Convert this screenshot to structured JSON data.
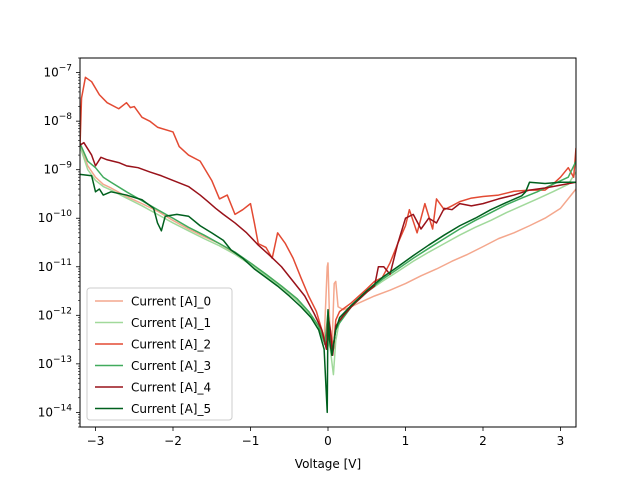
{
  "chart_data": {
    "type": "line",
    "title": "",
    "xlabel": "Voltage [V]",
    "ylabel": "",
    "xlim": [
      -3.2,
      3.2
    ],
    "ylim": [
      5e-15,
      2e-07
    ],
    "yscale": "log",
    "grid": false,
    "legend_position": "lower-left",
    "x_ticks": [
      -3,
      -2,
      -1,
      0,
      1,
      2,
      3
    ],
    "x_tick_labels": [
      "−3",
      "−2",
      "−1",
      "0",
      "1",
      "2",
      "3"
    ],
    "y_ticks": [
      1e-14,
      1e-13,
      1e-12,
      1e-11,
      1e-10,
      1e-09,
      1e-08,
      1e-07
    ],
    "y_tick_bases": [
      "10",
      "10",
      "10",
      "10",
      "10",
      "10",
      "10",
      "10"
    ],
    "y_tick_exponents": [
      "−14",
      "−13",
      "−12",
      "−11",
      "−10",
      "−9",
      "−8",
      "−7"
    ],
    "series": [
      {
        "name": "Current [A]_0",
        "color": "#f4a78d",
        "points": [
          [
            -3.2,
            3.5e-09
          ],
          [
            -3.1,
            1.2e-09
          ],
          [
            -3.0,
            7e-10
          ],
          [
            -2.9,
            5e-10
          ],
          [
            -2.8,
            4.2e-10
          ],
          [
            -2.6,
            2.8e-10
          ],
          [
            -2.4,
            2e-10
          ],
          [
            -2.2,
            1.4e-10
          ],
          [
            -2.0,
            9e-11
          ],
          [
            -1.8,
            6e-11
          ],
          [
            -1.6,
            4.2e-11
          ],
          [
            -1.4,
            3e-11
          ],
          [
            -1.2,
            1.9e-11
          ],
          [
            -1.0,
            1.2e-11
          ],
          [
            -0.8,
            7e-12
          ],
          [
            -0.6,
            4e-12
          ],
          [
            -0.4,
            2.2e-12
          ],
          [
            -0.25,
            1.2e-12
          ],
          [
            -0.12,
            6e-13
          ],
          [
            -0.05,
            3e-13
          ],
          [
            -0.01,
            1e-11
          ],
          [
            0.0,
            1.2e-11
          ],
          [
            0.02,
            8e-13
          ],
          [
            0.05,
            2e-13
          ],
          [
            0.08,
            4.5e-12
          ],
          [
            0.1,
            5e-12
          ],
          [
            0.13,
            1.5e-12
          ],
          [
            0.2,
            1.3e-12
          ],
          [
            0.3,
            1.5e-12
          ],
          [
            0.4,
            1.8e-12
          ],
          [
            0.6,
            2.5e-12
          ],
          [
            0.8,
            3.3e-12
          ],
          [
            1.0,
            4.5e-12
          ],
          [
            1.2,
            6.5e-12
          ],
          [
            1.4,
            9e-12
          ],
          [
            1.6,
            1.3e-11
          ],
          [
            1.8,
            1.8e-11
          ],
          [
            2.0,
            2.6e-11
          ],
          [
            2.2,
            3.8e-11
          ],
          [
            2.4,
            5e-11
          ],
          [
            2.6,
            7e-11
          ],
          [
            2.8,
            1e-10
          ],
          [
            3.0,
            1.6e-10
          ],
          [
            3.2,
            4e-10
          ]
        ]
      },
      {
        "name": "Current [A]_1",
        "color": "#a1d99b",
        "points": [
          [
            -3.2,
            3e-09
          ],
          [
            -3.1,
            1e-09
          ],
          [
            -3.0,
            6e-10
          ],
          [
            -2.9,
            4.5e-10
          ],
          [
            -2.8,
            3.8e-10
          ],
          [
            -2.6,
            2.6e-10
          ],
          [
            -2.4,
            1.8e-10
          ],
          [
            -2.2,
            1.2e-10
          ],
          [
            -2.0,
            8e-11
          ],
          [
            -1.8,
            5.5e-11
          ],
          [
            -1.6,
            3.8e-11
          ],
          [
            -1.4,
            2.7e-11
          ],
          [
            -1.2,
            1.8e-11
          ],
          [
            -1.0,
            1.1e-11
          ],
          [
            -0.8,
            6.5e-12
          ],
          [
            -0.6,
            3.8e-12
          ],
          [
            -0.4,
            2e-12
          ],
          [
            -0.25,
            1.1e-12
          ],
          [
            -0.1,
            5e-13
          ],
          [
            -0.03,
            2.5e-13
          ],
          [
            0.0,
            3e-13
          ],
          [
            0.03,
            2e-13
          ],
          [
            0.07,
            6e-14
          ],
          [
            0.1,
            3e-13
          ],
          [
            0.15,
            8e-13
          ],
          [
            0.3,
            1.6e-12
          ],
          [
            0.5,
            3e-12
          ],
          [
            0.7,
            5e-12
          ],
          [
            0.9,
            8e-12
          ],
          [
            1.1,
            1.3e-11
          ],
          [
            1.3,
            2e-11
          ],
          [
            1.5,
            3e-11
          ],
          [
            1.7,
            4.5e-11
          ],
          [
            1.9,
            6.5e-11
          ],
          [
            2.1,
            9e-11
          ],
          [
            2.3,
            1.3e-10
          ],
          [
            2.5,
            1.8e-10
          ],
          [
            2.7,
            2.5e-10
          ],
          [
            2.9,
            3.5e-10
          ],
          [
            3.1,
            5e-10
          ],
          [
            3.2,
            9e-10
          ]
        ]
      },
      {
        "name": "Current [A]_2",
        "color": "#e34a33",
        "points": [
          [
            -3.2,
            3e-09
          ],
          [
            -3.18,
            3e-08
          ],
          [
            -3.13,
            8e-08
          ],
          [
            -3.05,
            6.5e-08
          ],
          [
            -2.95,
            3.5e-08
          ],
          [
            -2.85,
            2.4e-08
          ],
          [
            -2.7,
            1.8e-08
          ],
          [
            -2.6,
            2.4e-08
          ],
          [
            -2.55,
            1.9e-08
          ],
          [
            -2.5,
            2e-08
          ],
          [
            -2.4,
            1.2e-08
          ],
          [
            -2.3,
            1e-08
          ],
          [
            -2.2,
            7.5e-09
          ],
          [
            -2.0,
            6e-09
          ],
          [
            -1.92,
            3e-09
          ],
          [
            -1.8,
            2e-09
          ],
          [
            -1.65,
            1.5e-09
          ],
          [
            -1.5,
            6e-10
          ],
          [
            -1.4,
            2.5e-10
          ],
          [
            -1.3,
            3e-10
          ],
          [
            -1.2,
            1.2e-10
          ],
          [
            -1.1,
            1.5e-10
          ],
          [
            -1.0,
            2e-10
          ],
          [
            -0.95,
            8e-11
          ],
          [
            -0.9,
            3e-11
          ],
          [
            -0.8,
            2.5e-11
          ],
          [
            -0.72,
            1.5e-11
          ],
          [
            -0.65,
            5e-11
          ],
          [
            -0.55,
            3e-11
          ],
          [
            -0.45,
            1.5e-11
          ],
          [
            -0.35,
            6e-12
          ],
          [
            -0.25,
            2.5e-12
          ],
          [
            -0.15,
            1.2e-12
          ],
          [
            -0.08,
            5e-13
          ],
          [
            -0.02,
            2.5e-13
          ],
          [
            0.0,
            3e-13
          ],
          [
            0.03,
            5e-13
          ],
          [
            0.07,
            2e-13
          ],
          [
            0.1,
            8e-13
          ],
          [
            0.15,
            1.2e-12
          ],
          [
            0.3,
            1.8e-12
          ],
          [
            0.5,
            3.5e-12
          ],
          [
            0.6,
            5e-12
          ],
          [
            0.7,
            6e-12
          ],
          [
            0.8,
            1.2e-11
          ],
          [
            0.9,
            3e-11
          ],
          [
            1.0,
            7e-11
          ],
          [
            1.05,
            1.5e-10
          ],
          [
            1.15,
            5e-11
          ],
          [
            1.25,
            2e-10
          ],
          [
            1.35,
            6e-11
          ],
          [
            1.4,
            2.5e-10
          ],
          [
            1.5,
            1.5e-10
          ],
          [
            1.6,
            1.8e-10
          ],
          [
            1.7,
            2.2e-10
          ],
          [
            1.85,
            2.6e-10
          ],
          [
            2.0,
            2.8e-10
          ],
          [
            2.2,
            3e-10
          ],
          [
            2.4,
            3.6e-10
          ],
          [
            2.6,
            3.8e-10
          ],
          [
            2.8,
            3.8e-10
          ],
          [
            2.9,
            5e-10
          ],
          [
            3.0,
            7e-10
          ],
          [
            3.1,
            1.1e-09
          ],
          [
            3.17,
            7e-10
          ],
          [
            3.2,
            2.8e-09
          ]
        ]
      },
      {
        "name": "Current [A]_3",
        "color": "#41ab5d",
        "points": [
          [
            -3.2,
            3.5e-09
          ],
          [
            -3.1,
            1.5e-09
          ],
          [
            -3.0,
            1.1e-09
          ],
          [
            -2.9,
            7e-10
          ],
          [
            -2.8,
            5.5e-10
          ],
          [
            -2.6,
            3.5e-10
          ],
          [
            -2.4,
            2.3e-10
          ],
          [
            -2.2,
            1.5e-10
          ],
          [
            -2.0,
            1e-10
          ],
          [
            -1.8,
            6.5e-11
          ],
          [
            -1.6,
            4.5e-11
          ],
          [
            -1.4,
            3e-11
          ],
          [
            -1.2,
            2e-11
          ],
          [
            -1.0,
            1.2e-11
          ],
          [
            -0.8,
            7e-12
          ],
          [
            -0.6,
            4e-12
          ],
          [
            -0.4,
            2.2e-12
          ],
          [
            -0.25,
            1.2e-12
          ],
          [
            -0.12,
            6e-13
          ],
          [
            -0.04,
            2.5e-13
          ],
          [
            0.0,
            1.2e-12
          ],
          [
            0.03,
            3e-13
          ],
          [
            0.06,
            2e-13
          ],
          [
            0.1,
            5e-13
          ],
          [
            0.15,
            7e-13
          ],
          [
            0.3,
            1.5e-12
          ],
          [
            0.5,
            3e-12
          ],
          [
            0.7,
            5.5e-12
          ],
          [
            0.9,
            9e-12
          ],
          [
            1.1,
            1.5e-11
          ],
          [
            1.3,
            2.4e-11
          ],
          [
            1.5,
            3.8e-11
          ],
          [
            1.7,
            6e-11
          ],
          [
            1.9,
            9e-11
          ],
          [
            2.1,
            1.3e-10
          ],
          [
            2.3,
            1.9e-10
          ],
          [
            2.5,
            2.6e-10
          ],
          [
            2.7,
            3.5e-10
          ],
          [
            2.9,
            5e-10
          ],
          [
            3.1,
            7e-10
          ],
          [
            3.2,
            1.5e-09
          ]
        ]
      },
      {
        "name": "Current [A]_4",
        "color": "#99121a",
        "points": [
          [
            -3.2,
            3.2e-09
          ],
          [
            -3.15,
            3.6e-09
          ],
          [
            -3.05,
            2e-09
          ],
          [
            -3.0,
            1.2e-09
          ],
          [
            -2.93,
            1.8e-09
          ],
          [
            -2.85,
            1.6e-09
          ],
          [
            -2.7,
            1.4e-09
          ],
          [
            -2.6,
            1.2e-09
          ],
          [
            -2.45,
            1.1e-09
          ],
          [
            -2.3,
            9e-10
          ],
          [
            -2.15,
            7.5e-10
          ],
          [
            -2.0,
            6e-10
          ],
          [
            -1.8,
            4.5e-10
          ],
          [
            -1.65,
            3e-10
          ],
          [
            -1.55,
            2.2e-10
          ],
          [
            -1.45,
            1.6e-10
          ],
          [
            -1.35,
            1.2e-10
          ],
          [
            -1.2,
            8e-11
          ],
          [
            -1.05,
            5e-11
          ],
          [
            -0.9,
            2.8e-11
          ],
          [
            -0.75,
            1.7e-11
          ],
          [
            -0.6,
            1e-11
          ],
          [
            -0.45,
            5e-12
          ],
          [
            -0.3,
            2.5e-12
          ],
          [
            -0.18,
            1.1e-12
          ],
          [
            -0.08,
            5e-13
          ],
          [
            -0.02,
            2e-13
          ],
          [
            0.0,
            1e-12
          ],
          [
            0.03,
            5e-13
          ],
          [
            0.06,
            1.5e-13
          ],
          [
            0.1,
            6e-13
          ],
          [
            0.2,
            1e-12
          ],
          [
            0.35,
            1.8e-12
          ],
          [
            0.5,
            3e-12
          ],
          [
            0.6,
            4e-12
          ],
          [
            0.65,
            1e-11
          ],
          [
            0.72,
            1e-11
          ],
          [
            0.8,
            7e-12
          ],
          [
            0.9,
            3e-11
          ],
          [
            1.0,
            1e-10
          ],
          [
            1.1,
            1.2e-10
          ],
          [
            1.2,
            6e-11
          ],
          [
            1.3,
            1e-10
          ],
          [
            1.4,
            8e-11
          ],
          [
            1.5,
            1.6e-10
          ],
          [
            1.6,
            1.5e-10
          ],
          [
            1.7,
            2e-10
          ],
          [
            1.85,
            1.8e-10
          ],
          [
            2.0,
            2e-10
          ],
          [
            2.2,
            2.5e-10
          ],
          [
            2.4,
            3e-10
          ],
          [
            2.6,
            3.8e-10
          ],
          [
            2.8,
            4.2e-10
          ],
          [
            3.0,
            4.8e-10
          ],
          [
            3.2,
            5.5e-10
          ]
        ]
      },
      {
        "name": "Current [A]_5",
        "color": "#00601e",
        "points": [
          [
            -3.2,
            8e-10
          ],
          [
            -3.05,
            7.5e-10
          ],
          [
            -3.0,
            3.5e-10
          ],
          [
            -2.95,
            4e-10
          ],
          [
            -2.9,
            3e-10
          ],
          [
            -2.8,
            3.5e-10
          ],
          [
            -2.6,
            3e-10
          ],
          [
            -2.4,
            2.4e-10
          ],
          [
            -2.25,
            1.6e-10
          ],
          [
            -2.2,
            8e-11
          ],
          [
            -2.15,
            5.5e-11
          ],
          [
            -2.1,
            1.1e-10
          ],
          [
            -1.95,
            1.2e-10
          ],
          [
            -1.8,
            1.1e-10
          ],
          [
            -1.65,
            7e-11
          ],
          [
            -1.5,
            5e-11
          ],
          [
            -1.35,
            3.5e-11
          ],
          [
            -1.25,
            2.2e-11
          ],
          [
            -1.1,
            1.5e-11
          ],
          [
            -0.95,
            9e-12
          ],
          [
            -0.8,
            6e-12
          ],
          [
            -0.65,
            4e-12
          ],
          [
            -0.5,
            2.5e-12
          ],
          [
            -0.35,
            1.5e-12
          ],
          [
            -0.22,
            9e-13
          ],
          [
            -0.12,
            5e-13
          ],
          [
            -0.05,
            2e-13
          ],
          [
            -0.01,
            1e-14
          ],
          [
            0.0,
            1.3e-12
          ],
          [
            0.02,
            3e-13
          ],
          [
            0.05,
            1.5e-13
          ],
          [
            0.1,
            5e-13
          ],
          [
            0.15,
            9e-13
          ],
          [
            0.3,
            1.6e-12
          ],
          [
            0.5,
            3.2e-12
          ],
          [
            0.7,
            6e-12
          ],
          [
            0.9,
            1e-11
          ],
          [
            1.1,
            1.7e-11
          ],
          [
            1.3,
            2.8e-11
          ],
          [
            1.5,
            4.5e-11
          ],
          [
            1.7,
            7e-11
          ],
          [
            1.9,
            1e-10
          ],
          [
            2.1,
            1.5e-10
          ],
          [
            2.3,
            2.1e-10
          ],
          [
            2.5,
            2.9e-10
          ],
          [
            2.55,
            3.5e-10
          ],
          [
            2.6,
            5.5e-10
          ],
          [
            2.8,
            5.2e-10
          ],
          [
            3.0,
            5.5e-10
          ],
          [
            3.1,
            5.5e-10
          ],
          [
            3.2,
            5.5e-10
          ]
        ]
      }
    ]
  }
}
